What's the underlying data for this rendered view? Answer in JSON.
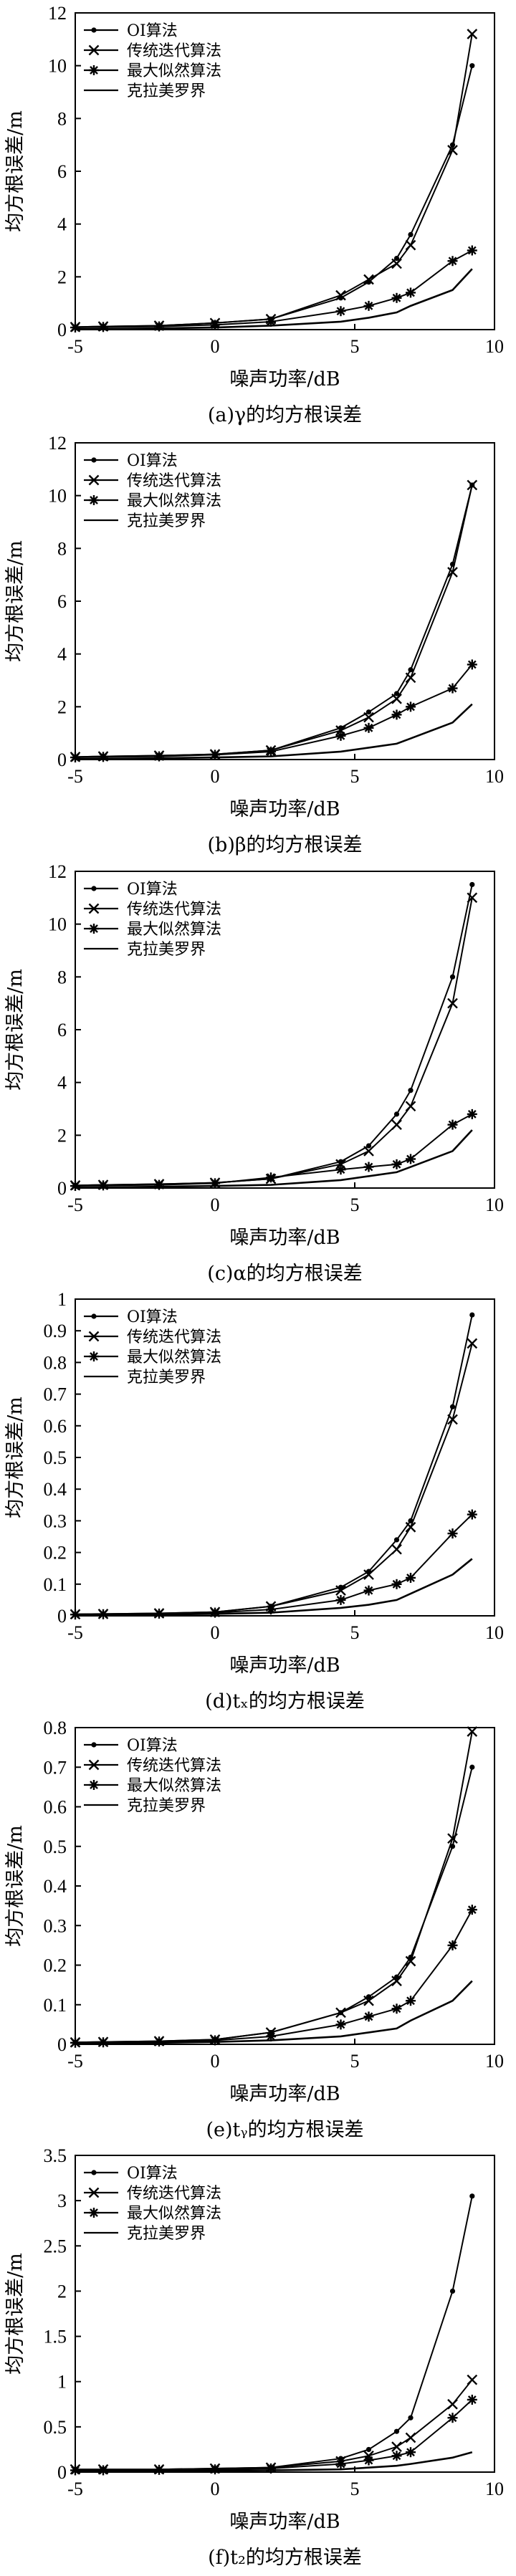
{
  "chart_data": [
    {
      "type": "line",
      "caption": "(a)γ的均方根误差",
      "xlabel": "噪声功率/dB",
      "ylabel": "均方根误差/m",
      "xlim": [
        -5,
        10
      ],
      "ylim": [
        0,
        12
      ],
      "xticks": [
        "-5",
        "0",
        "5",
        "10"
      ],
      "yticks": [
        "0",
        "2",
        "4",
        "6",
        "8",
        "10",
        "12"
      ],
      "x": [
        -5,
        -4,
        -2,
        0,
        2,
        4.5,
        5.5,
        6.5,
        7,
        8.5,
        9.2
      ],
      "series": [
        {
          "name": "OI算法",
          "marker": "dot",
          "values": [
            0.1,
            0.12,
            0.15,
            0.25,
            0.4,
            1.2,
            1.8,
            2.7,
            3.6,
            7.0,
            10.0
          ]
        },
        {
          "name": "传统迭代算法",
          "marker": "x",
          "values": [
            0.1,
            0.12,
            0.15,
            0.25,
            0.4,
            1.3,
            1.9,
            2.5,
            3.2,
            6.8,
            11.2
          ]
        },
        {
          "name": "最大似然算法",
          "marker": "star",
          "values": [
            0.08,
            0.1,
            0.12,
            0.18,
            0.3,
            0.7,
            0.9,
            1.2,
            1.4,
            2.6,
            3.0
          ]
        },
        {
          "name": "克拉美罗界",
          "marker": "none",
          "values": [
            0.02,
            0.03,
            0.05,
            0.08,
            0.15,
            0.3,
            0.45,
            0.65,
            0.9,
            1.5,
            2.3
          ]
        }
      ]
    },
    {
      "type": "line",
      "caption": "(b)β的均方根误差",
      "xlabel": "噪声功率/dB",
      "ylabel": "均方根误差/m",
      "xlim": [
        -5,
        10
      ],
      "ylim": [
        0,
        12
      ],
      "xticks": [
        "-5",
        "0",
        "5",
        "10"
      ],
      "yticks": [
        "0",
        "2",
        "4",
        "6",
        "8",
        "10",
        "12"
      ],
      "x": [
        -5,
        -4,
        -2,
        0,
        2,
        4.5,
        5.5,
        6.5,
        7,
        8.5,
        9.2
      ],
      "series": [
        {
          "name": "OI算法",
          "marker": "dot",
          "values": [
            0.1,
            0.12,
            0.15,
            0.2,
            0.35,
            1.2,
            1.8,
            2.5,
            3.4,
            7.4,
            10.4
          ]
        },
        {
          "name": "传统迭代算法",
          "marker": "x",
          "values": [
            0.1,
            0.12,
            0.15,
            0.2,
            0.35,
            1.1,
            1.6,
            2.3,
            3.1,
            7.1,
            10.4
          ]
        },
        {
          "name": "最大似然算法",
          "marker": "star",
          "values": [
            0.08,
            0.1,
            0.12,
            0.18,
            0.3,
            0.9,
            1.2,
            1.7,
            2.0,
            2.7,
            3.6
          ]
        },
        {
          "name": "克拉美罗界",
          "marker": "none",
          "values": [
            0.02,
            0.03,
            0.05,
            0.08,
            0.12,
            0.3,
            0.45,
            0.6,
            0.8,
            1.4,
            2.1
          ]
        }
      ]
    },
    {
      "type": "line",
      "caption": "(c)α的均方根误差",
      "xlabel": "噪声功率/dB",
      "ylabel": "均方根误差/m",
      "xlim": [
        -5,
        10
      ],
      "ylim": [
        0,
        12
      ],
      "xticks": [
        "-5",
        "0",
        "5",
        "10"
      ],
      "yticks": [
        "0",
        "2",
        "4",
        "6",
        "8",
        "10",
        "12"
      ],
      "x": [
        -5,
        -4,
        -2,
        0,
        2,
        4.5,
        5.5,
        6.5,
        7,
        8.5,
        9.2
      ],
      "series": [
        {
          "name": "OI算法",
          "marker": "dot",
          "values": [
            0.1,
            0.12,
            0.15,
            0.2,
            0.35,
            1.0,
            1.6,
            2.8,
            3.7,
            8.0,
            11.5
          ]
        },
        {
          "name": "传统迭代算法",
          "marker": "x",
          "values": [
            0.1,
            0.12,
            0.15,
            0.2,
            0.35,
            0.9,
            1.4,
            2.4,
            3.1,
            7.0,
            11.0
          ]
        },
        {
          "name": "最大似然算法",
          "marker": "star",
          "values": [
            0.08,
            0.1,
            0.12,
            0.18,
            0.4,
            0.7,
            0.8,
            0.9,
            1.1,
            2.4,
            2.8
          ]
        },
        {
          "name": "克拉美罗界",
          "marker": "none",
          "values": [
            0.02,
            0.03,
            0.05,
            0.08,
            0.12,
            0.3,
            0.45,
            0.6,
            0.8,
            1.4,
            2.2
          ]
        }
      ]
    },
    {
      "type": "line",
      "caption": "(d)tₓ的均方根误差",
      "xlabel": "噪声功率/dB",
      "ylabel": "均方根误差/m",
      "xlim": [
        -5,
        10
      ],
      "ylim": [
        0,
        1
      ],
      "xticks": [
        "-5",
        "0",
        "5",
        "10"
      ],
      "yticks": [
        "0",
        "0.1",
        "0.2",
        "0.3",
        "0.4",
        "0.5",
        "0.6",
        "0.7",
        "0.8",
        "0.9",
        "1"
      ],
      "x": [
        -5,
        -4,
        -2,
        0,
        2,
        4.5,
        5.5,
        6.5,
        7,
        8.5,
        9.2
      ],
      "series": [
        {
          "name": "OI算法",
          "marker": "dot",
          "values": [
            0.005,
            0.006,
            0.008,
            0.012,
            0.03,
            0.09,
            0.14,
            0.24,
            0.3,
            0.66,
            0.95
          ]
        },
        {
          "name": "传统迭代算法",
          "marker": "x",
          "values": [
            0.005,
            0.006,
            0.008,
            0.012,
            0.03,
            0.08,
            0.13,
            0.21,
            0.28,
            0.62,
            0.86
          ]
        },
        {
          "name": "最大似然算法",
          "marker": "star",
          "values": [
            0.004,
            0.005,
            0.007,
            0.01,
            0.02,
            0.05,
            0.08,
            0.1,
            0.12,
            0.26,
            0.32
          ]
        },
        {
          "name": "克拉美罗界",
          "marker": "none",
          "values": [
            0.002,
            0.003,
            0.004,
            0.006,
            0.01,
            0.025,
            0.035,
            0.05,
            0.07,
            0.13,
            0.18
          ]
        }
      ]
    },
    {
      "type": "line",
      "caption": "(e)tᵧ的均方根误差",
      "xlabel": "噪声功率/dB",
      "ylabel": "均方根误差/m",
      "xlim": [
        -5,
        10
      ],
      "ylim": [
        0,
        0.8
      ],
      "xticks": [
        "-5",
        "0",
        "5",
        "10"
      ],
      "yticks": [
        "0",
        "0.1",
        "0.2",
        "0.3",
        "0.4",
        "0.5",
        "0.6",
        "0.7",
        "0.8"
      ],
      "x": [
        -5,
        -4,
        -2,
        0,
        2,
        4.5,
        5.5,
        6.5,
        7,
        8.5,
        9.2
      ],
      "series": [
        {
          "name": "OI算法",
          "marker": "dot",
          "values": [
            0.005,
            0.006,
            0.008,
            0.012,
            0.03,
            0.08,
            0.12,
            0.17,
            0.22,
            0.5,
            0.7
          ]
        },
        {
          "name": "传统迭代算法",
          "marker": "x",
          "values": [
            0.005,
            0.006,
            0.008,
            0.012,
            0.03,
            0.08,
            0.11,
            0.16,
            0.21,
            0.52,
            0.79
          ]
        },
        {
          "name": "最大似然算法",
          "marker": "star",
          "values": [
            0.004,
            0.005,
            0.007,
            0.01,
            0.02,
            0.05,
            0.07,
            0.09,
            0.11,
            0.25,
            0.34
          ]
        },
        {
          "name": "克拉美罗界",
          "marker": "none",
          "values": [
            0.002,
            0.003,
            0.004,
            0.006,
            0.01,
            0.02,
            0.03,
            0.04,
            0.06,
            0.11,
            0.16
          ]
        }
      ]
    },
    {
      "type": "line",
      "caption": "(f)t₂的均方根误差",
      "xlabel": "噪声功率/dB",
      "ylabel": "均方根误差/m",
      "xlim": [
        -5,
        10
      ],
      "ylim": [
        0,
        3.5
      ],
      "xticks": [
        "-5",
        "0",
        "5",
        "10"
      ],
      "yticks": [
        "0",
        "0.5",
        "1",
        "1.5",
        "2",
        "2.5",
        "3",
        "3.5"
      ],
      "x": [
        -5,
        -4,
        -2,
        0,
        2,
        4.5,
        5.5,
        6.5,
        7,
        8.5,
        9.2
      ],
      "series": [
        {
          "name": "OI算法",
          "marker": "dot",
          "values": [
            0.03,
            0.03,
            0.03,
            0.04,
            0.05,
            0.15,
            0.25,
            0.45,
            0.6,
            2.0,
            3.05
          ]
        },
        {
          "name": "传统迭代算法",
          "marker": "x",
          "values": [
            0.03,
            0.03,
            0.03,
            0.04,
            0.05,
            0.12,
            0.18,
            0.28,
            0.38,
            0.75,
            1.02
          ]
        },
        {
          "name": "最大似然算法",
          "marker": "star",
          "values": [
            0.02,
            0.02,
            0.025,
            0.03,
            0.04,
            0.09,
            0.13,
            0.18,
            0.22,
            0.6,
            0.8
          ]
        },
        {
          "name": "克拉美罗界",
          "marker": "none",
          "values": [
            0.01,
            0.01,
            0.012,
            0.015,
            0.02,
            0.03,
            0.05,
            0.07,
            0.09,
            0.16,
            0.22
          ]
        }
      ]
    }
  ]
}
